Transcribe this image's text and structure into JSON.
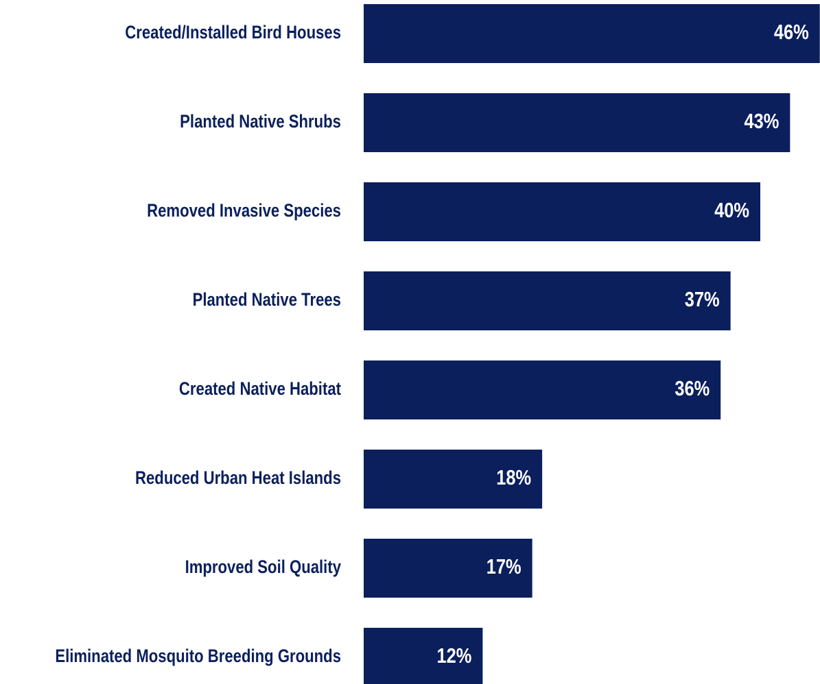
{
  "chart_data": {
    "type": "bar",
    "orientation": "horizontal",
    "categories": [
      "Created/Installed Bird Houses",
      "Planted Native Shrubs",
      "Removed Invasive Species",
      "Planted Native Trees",
      "Created Native Habitat",
      "Reduced Urban Heat Islands",
      "Improved Soil Quality",
      "Eliminated Mosquito Breeding Grounds"
    ],
    "values": [
      46,
      43,
      40,
      37,
      36,
      18,
      17,
      12
    ],
    "value_labels": [
      "46%",
      "43%",
      "40%",
      "37%",
      "36%",
      "18%",
      "17%",
      "12%"
    ],
    "color": "#0a1f5c"
  }
}
